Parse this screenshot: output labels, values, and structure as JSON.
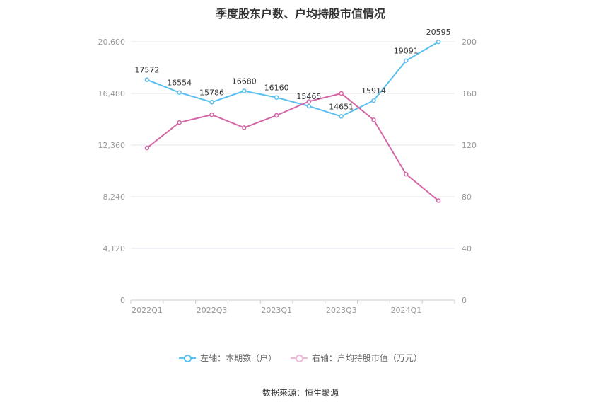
{
  "chart_data": {
    "type": "line",
    "title": "季度股东户数、户均持股市值情况",
    "categories": [
      "2022Q1",
      "2022Q2",
      "2022Q3",
      "2022Q4",
      "2023Q1",
      "2023Q2",
      "2023Q3",
      "2023Q4",
      "2024Q1",
      "2024Q2"
    ],
    "x_tick_labels": [
      "2022Q1",
      "",
      "2022Q3",
      "",
      "2023Q1",
      "",
      "2023Q3",
      "",
      "2024Q1",
      ""
    ],
    "left_axis": {
      "min": 0,
      "max": 20600,
      "ticks": [
        "0",
        "4,120",
        "8,240",
        "12,360",
        "16,480",
        "20,600"
      ]
    },
    "right_axis": {
      "min": 0,
      "max": 200,
      "ticks": [
        "0",
        "40",
        "80",
        "120",
        "160",
        "200"
      ]
    },
    "series": [
      {
        "name": "左轴：本期数（户）",
        "axis": "left",
        "color": "#5bc0f0",
        "values": [
          17572,
          16554,
          15786,
          16680,
          16160,
          15465,
          14651,
          15914,
          19091,
          20595
        ],
        "labels": [
          "17572",
          "16554",
          "15786",
          "16680",
          "16160",
          "15465",
          "14651",
          "15914",
          "19091",
          "20595"
        ]
      },
      {
        "name": "右轴：户均持股市值（万元）",
        "axis": "right",
        "color": "#d466a6",
        "values": [
          117.8,
          137.5,
          143.5,
          133.5,
          143.0,
          153.8,
          160.0,
          139.5,
          97.5,
          77.0
        ]
      }
    ],
    "grid": true,
    "legend_position": "bottom"
  },
  "source_text": "数据来源：恒生聚源"
}
